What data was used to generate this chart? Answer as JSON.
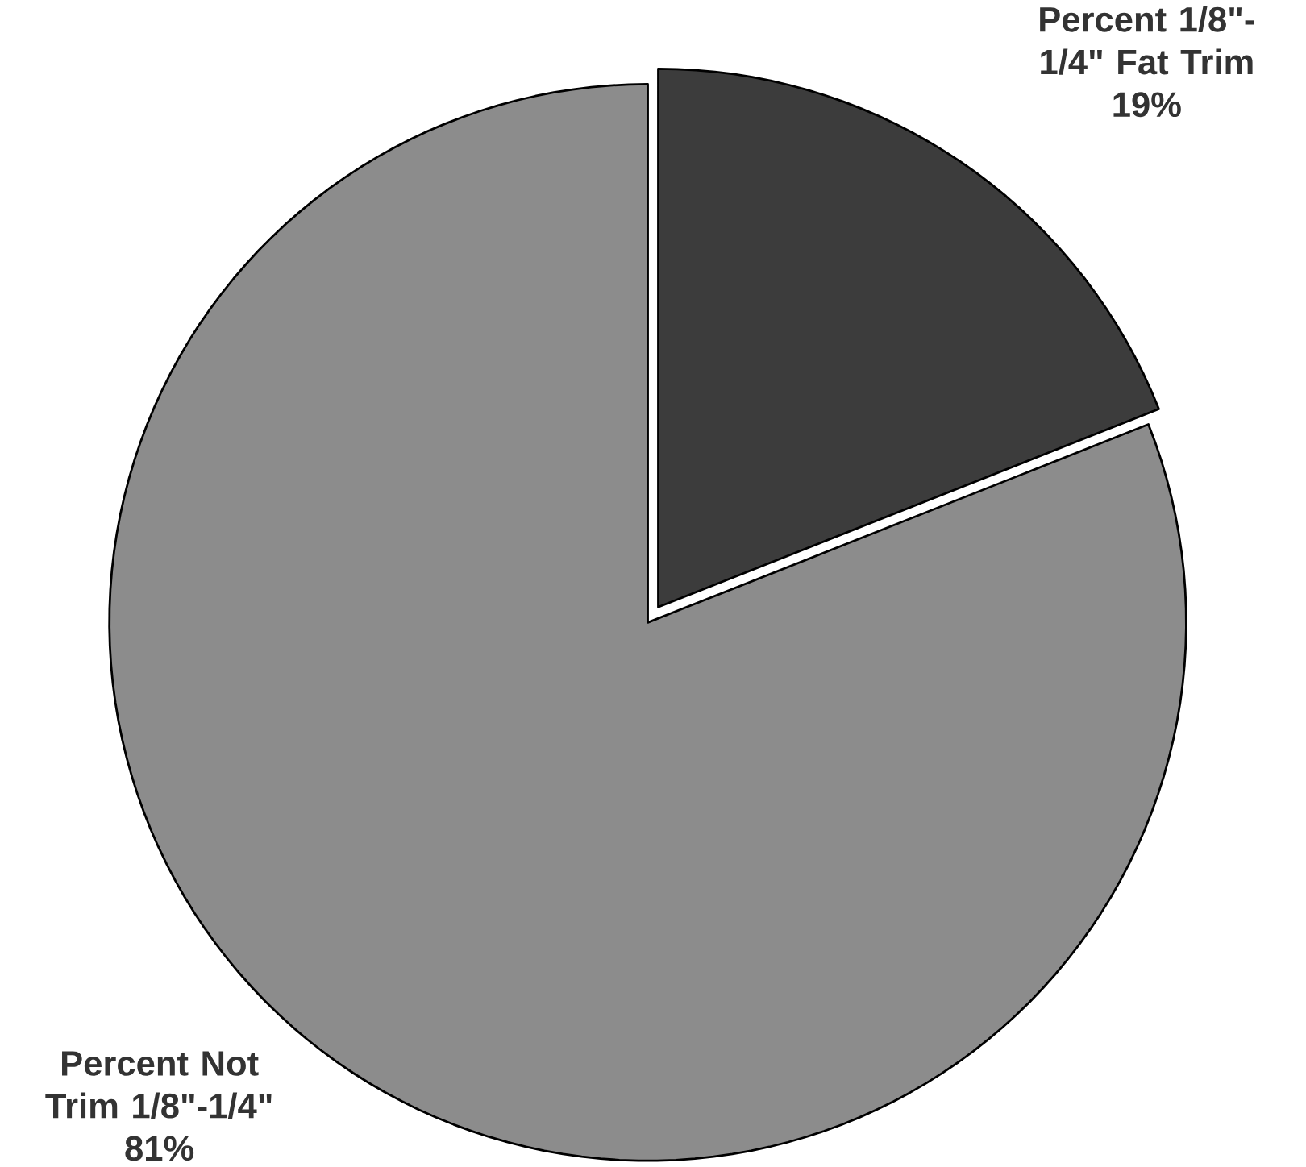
{
  "chart_data": {
    "type": "pie",
    "categories": [
      "Percent 1/8\"-1/4\" Fat Trim",
      "Percent Not Trim 1/8\"-1/4\""
    ],
    "values": [
      19,
      81
    ],
    "value_labels": [
      "19%",
      "81%"
    ],
    "colors": [
      "#3c3c3c",
      "#8c8c8c"
    ]
  }
}
